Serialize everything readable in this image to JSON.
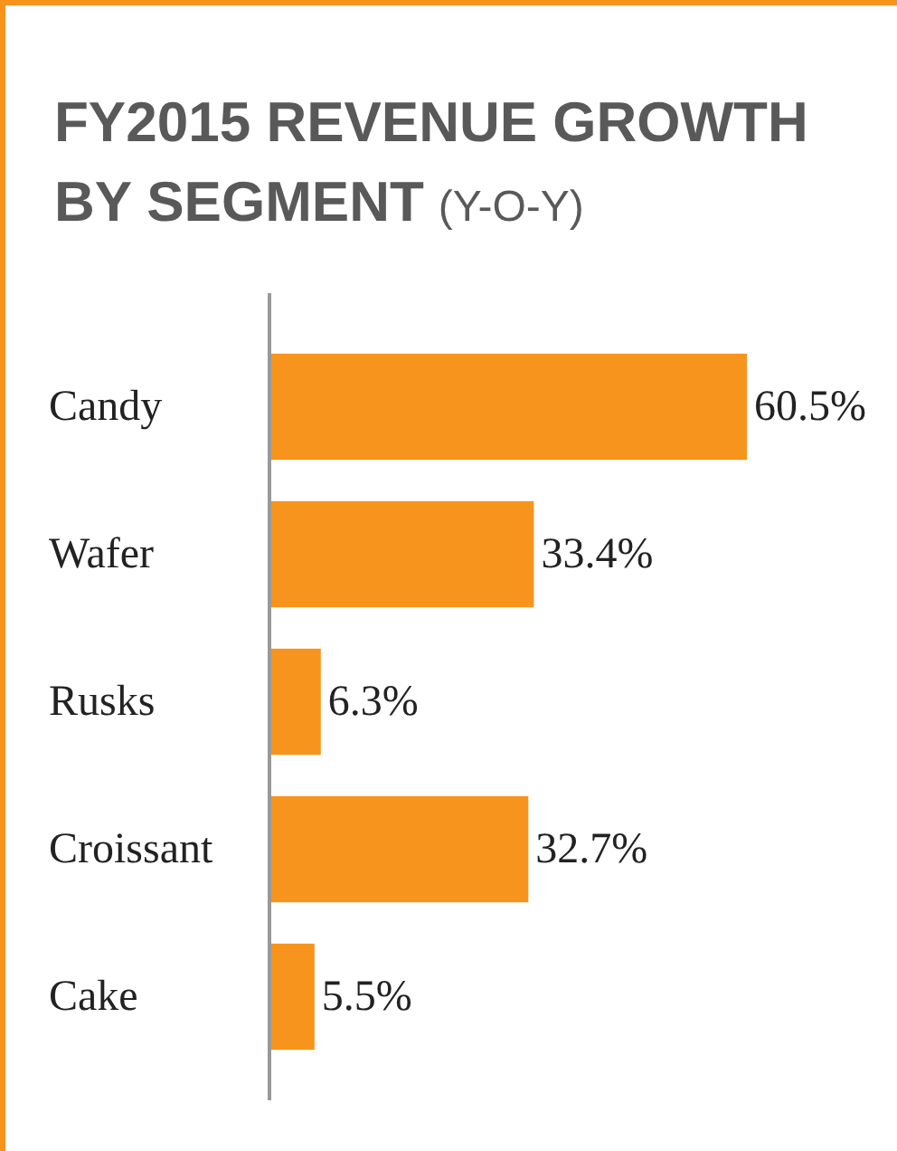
{
  "chart_data": {
    "type": "bar",
    "orientation": "horizontal",
    "title": "FY2015 REVENUE GROWTH BY SEGMENT",
    "subtitle": "(Y-O-Y)",
    "categories": [
      "Candy",
      "Wafer",
      "Rusks",
      "Croissant",
      "Cake"
    ],
    "values": [
      60.5,
      33.4,
      6.3,
      32.7,
      5.5
    ],
    "value_labels": [
      "60.5%",
      "33.4%",
      "6.3%",
      "32.7%",
      "5.5%"
    ],
    "color": "#f7941d"
  }
}
